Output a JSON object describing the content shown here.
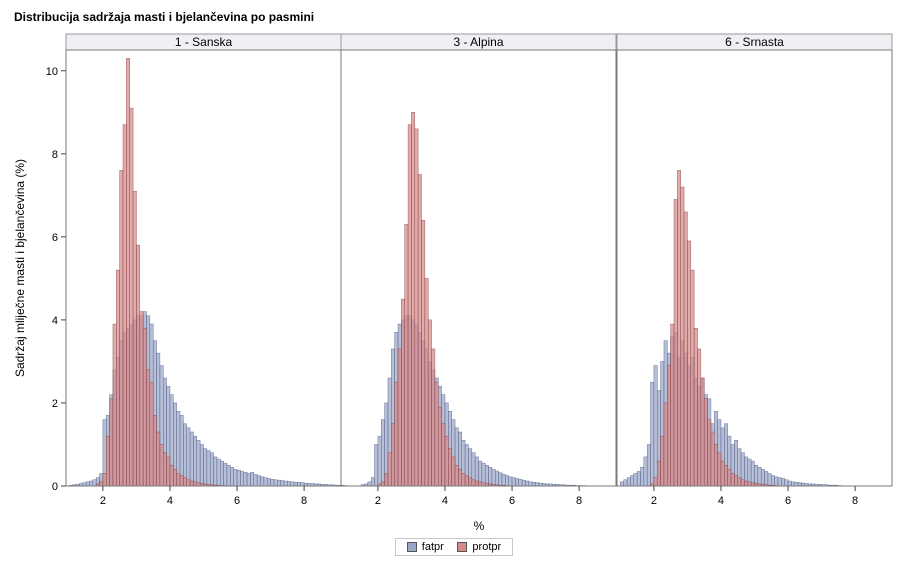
{
  "chart_data": {
    "type": "histogram-panel",
    "title": "Distribucija sadržaja masti i bjelančevina po pasmini",
    "xlabel": "%",
    "ylabel": "Sadržaj mliječne masti i bjelančevina (%)",
    "xlim": [
      0.9,
      9.1
    ],
    "ylim": [
      0,
      10.5
    ],
    "xticks": [
      2,
      4,
      6,
      8
    ],
    "yticks": [
      0,
      2,
      4,
      6,
      8,
      10
    ],
    "bin_width": 0.1,
    "legend_position": "bottom-center",
    "series_meta": [
      {
        "name": "fatpr",
        "color": "#9aa6c6",
        "stroke": "#4b5a86"
      },
      {
        "name": "protpr",
        "color": "#d48a8a",
        "stroke": "#8a3c3c"
      }
    ],
    "panels": [
      {
        "label": "1 - Sanska",
        "series": [
          {
            "name": "fatpr",
            "x_start": 1.05,
            "values": [
              0.02,
              0.03,
              0.04,
              0.06,
              0.08,
              0.1,
              0.12,
              0.15,
              0.2,
              0.3,
              1.6,
              1.7,
              2.2,
              2.8,
              3.1,
              3.5,
              3.7,
              3.8,
              3.9,
              4.0,
              4.1,
              4.1,
              4.2,
              4.1,
              3.9,
              3.5,
              3.2,
              2.9,
              2.6,
              2.4,
              2.2,
              2.0,
              1.8,
              1.7,
              1.5,
              1.4,
              1.3,
              1.2,
              1.1,
              1.0,
              0.9,
              0.85,
              0.8,
              0.7,
              0.65,
              0.6,
              0.55,
              0.5,
              0.45,
              0.4,
              0.38,
              0.35,
              0.33,
              0.3,
              0.33,
              0.28,
              0.25,
              0.22,
              0.2,
              0.18,
              0.16,
              0.15,
              0.14,
              0.13,
              0.12,
              0.11,
              0.1,
              0.09,
              0.09,
              0.08,
              0.07,
              0.06,
              0.06,
              0.05,
              0.05,
              0.04,
              0.04,
              0.03,
              0.03,
              0.02,
              0.02,
              0.02,
              0.01
            ]
          },
          {
            "name": "protpr",
            "x_start": 1.85,
            "values": [
              0.05,
              0.1,
              0.3,
              1.2,
              2.1,
              3.9,
              5.2,
              7.6,
              8.7,
              10.3,
              9.1,
              7.1,
              5.8,
              4.2,
              3.8,
              2.8,
              2.5,
              1.7,
              1.3,
              1.0,
              0.8,
              0.7,
              0.5,
              0.4,
              0.3,
              0.25,
              0.2,
              0.15,
              0.12,
              0.1,
              0.08,
              0.06,
              0.05,
              0.04,
              0.03,
              0.02,
              0.02,
              0.01,
              0.01
            ]
          }
        ]
      },
      {
        "label": "3 - Alpina",
        "series": [
          {
            "name": "fatpr",
            "x_start": 1.55,
            "values": [
              0.03,
              0.05,
              0.1,
              0.2,
              1.0,
              1.2,
              1.6,
              2.0,
              2.6,
              3.3,
              3.7,
              3.9,
              4.0,
              4.1,
              4.1,
              4.0,
              3.9,
              3.7,
              3.5,
              3.3,
              3.0,
              2.8,
              2.6,
              2.4,
              2.2,
              2.0,
              1.8,
              1.6,
              1.4,
              1.3,
              1.1,
              1.0,
              0.9,
              0.8,
              0.7,
              0.6,
              0.55,
              0.5,
              0.45,
              0.4,
              0.36,
              0.32,
              0.28,
              0.25,
              0.22,
              0.2,
              0.18,
              0.16,
              0.14,
              0.12,
              0.1,
              0.09,
              0.08,
              0.07,
              0.06,
              0.05,
              0.05,
              0.04,
              0.04,
              0.03,
              0.03,
              0.02,
              0.02,
              0.02,
              0.01,
              0.01,
              0.01
            ]
          },
          {
            "name": "protpr",
            "x_start": 2.05,
            "values": [
              0.05,
              0.1,
              0.3,
              0.8,
              1.5,
              2.5,
              3.3,
              4.5,
              6.3,
              8.7,
              9.0,
              8.6,
              7.5,
              6.4,
              5.0,
              4.0,
              3.3,
              2.5,
              1.9,
              1.5,
              1.2,
              0.9,
              0.7,
              0.5,
              0.4,
              0.3,
              0.25,
              0.2,
              0.15,
              0.12,
              0.1,
              0.08,
              0.06,
              0.05,
              0.04,
              0.03,
              0.02,
              0.02,
              0.01
            ]
          }
        ]
      },
      {
        "label": "6 - Srnasta",
        "series": [
          {
            "name": "fatpr",
            "x_start": 1.05,
            "values": [
              0.1,
              0.15,
              0.2,
              0.25,
              0.3,
              0.35,
              0.45,
              0.7,
              1.0,
              2.5,
              2.9,
              2.3,
              3.0,
              3.5,
              3.2,
              3.6,
              3.7,
              3.1,
              3.5,
              3.2,
              2.9,
              3.1,
              2.6,
              2.4,
              2.6,
              2.2,
              2.1,
              1.5,
              1.8,
              1.6,
              1.4,
              1.5,
              1.2,
              1.0,
              1.1,
              0.9,
              0.8,
              0.7,
              0.65,
              0.6,
              0.5,
              0.45,
              0.4,
              0.35,
              0.3,
              0.25,
              0.22,
              0.2,
              0.18,
              0.15,
              0.12,
              0.1,
              0.09,
              0.08,
              0.07,
              0.06,
              0.05,
              0.05,
              0.04,
              0.04,
              0.03,
              0.03,
              0.02,
              0.02,
              0.02,
              0.01
            ]
          },
          {
            "name": "protpr",
            "x_start": 1.95,
            "values": [
              0.05,
              0.2,
              0.6,
              1.2,
              2.0,
              2.9,
              3.9,
              6.9,
              7.6,
              7.2,
              6.6,
              5.9,
              5.2,
              3.8,
              3.3,
              2.6,
              2.1,
              1.6,
              1.3,
              1.0,
              0.8,
              0.6,
              0.5,
              0.4,
              0.3,
              0.25,
              0.2,
              0.15,
              0.12,
              0.1,
              0.08,
              0.06,
              0.05,
              0.04,
              0.03,
              0.02,
              0.02,
              0.01
            ]
          }
        ]
      }
    ]
  }
}
